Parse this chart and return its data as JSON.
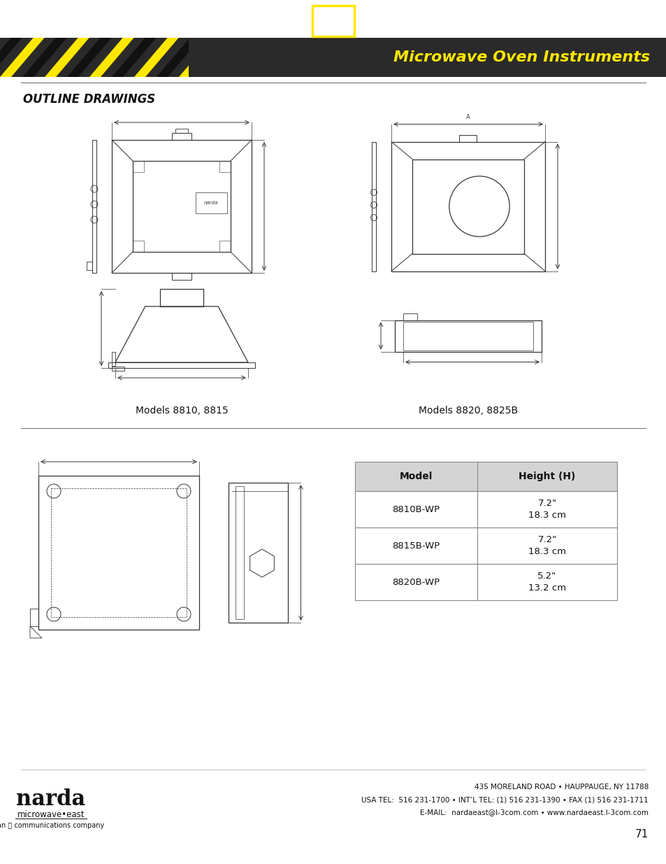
{
  "title_text": "Microwave Oven Instruments",
  "outline_title": "OUTLINE DRAWINGS",
  "header_bg": "#2a2a2a",
  "header_stripe_yellow": "#FFE800",
  "header_stripe_dark": "#1a1a1a",
  "nav_yellow": "#FFE800",
  "nav_outline": "#222222",
  "models_label_left": "Models 8810, 8815",
  "models_label_right": "Models 8820, 8825B",
  "table_header_bg": "#d4d4d4",
  "table_col1": "Model",
  "table_col2": "Height (H)",
  "table_rows": [
    [
      "8810B-WP",
      "7.2\"\n18.3 cm"
    ],
    [
      "8815B-WP",
      "7.2\"\n18.3 cm"
    ],
    [
      "8820B-WP",
      "5.2\"\n13.2 cm"
    ]
  ],
  "footer_address": "435 MORELAND ROAD • HAUPPAUGE, NY 11788",
  "footer_tel": "USA TEL:  516 231-1700 • INT’L TEL: (1) 516 231-1390 • FAX (1) 516 231-1711",
  "footer_email": "E-MAIL:  nardaeast@l-3com.com • www.nardaeast.l-3com.com",
  "footer_page": "71",
  "bg_color": "#ffffff",
  "line_color": "#333333",
  "divider_color": "#777777"
}
